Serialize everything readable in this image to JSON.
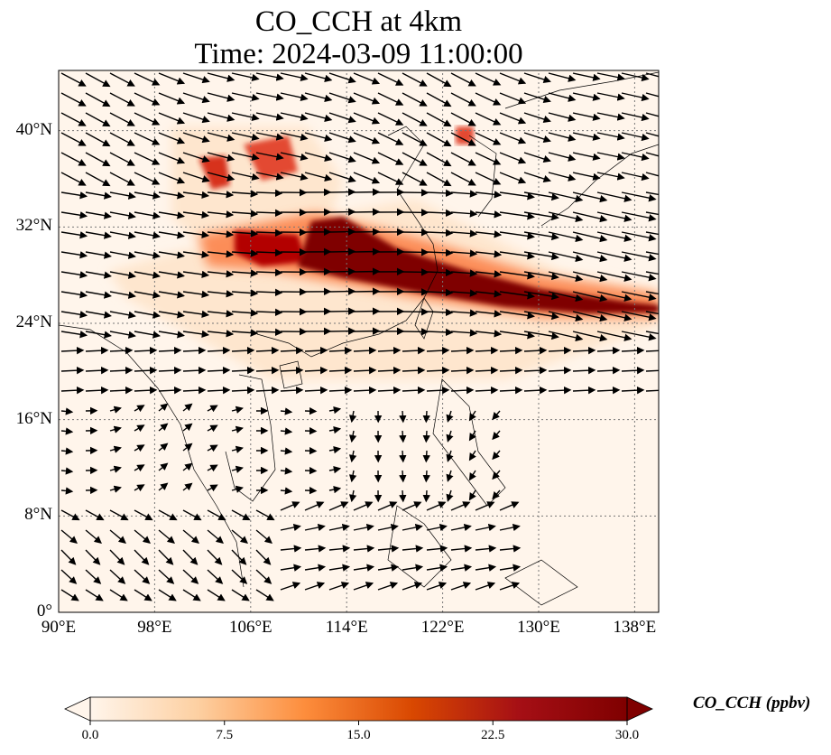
{
  "title": {
    "line1": "CO_CCH at 4km",
    "line2": "Time: 2024-03-09 11:00:00"
  },
  "map": {
    "lon_range": [
      90,
      140
    ],
    "lat_range": [
      0,
      45
    ],
    "lat_ticks": [
      {
        "value": 40,
        "label": "40°N"
      },
      {
        "value": 32,
        "label": "32°N"
      },
      {
        "value": 24,
        "label": "24°N"
      },
      {
        "value": 16,
        "label": "16°N"
      },
      {
        "value": 8,
        "label": "8°N"
      },
      {
        "value": 0,
        "label": "0°"
      }
    ],
    "lon_ticks": [
      {
        "value": 90,
        "label": "90°E"
      },
      {
        "value": 98,
        "label": "98°E"
      },
      {
        "value": 106,
        "label": "106°E"
      },
      {
        "value": 114,
        "label": "114°E"
      },
      {
        "value": 122,
        "label": "122°E"
      },
      {
        "value": 130,
        "label": "130°E"
      },
      {
        "value": 138,
        "label": "138°E"
      }
    ]
  },
  "colorbar": {
    "title": "CO_CCH (ppbv)",
    "range": [
      0,
      30
    ],
    "ticks": [
      {
        "value": 0,
        "label": "0.0"
      },
      {
        "value": 7.5,
        "label": "7.5"
      },
      {
        "value": 15,
        "label": "15.0"
      },
      {
        "value": 22.5,
        "label": "22.5"
      },
      {
        "value": 30,
        "label": "30.0"
      }
    ],
    "colors": [
      "#fff5eb",
      "#fdd0a2",
      "#fd8d3c",
      "#d94801",
      "#a50f15",
      "#7f0000"
    ]
  }
}
